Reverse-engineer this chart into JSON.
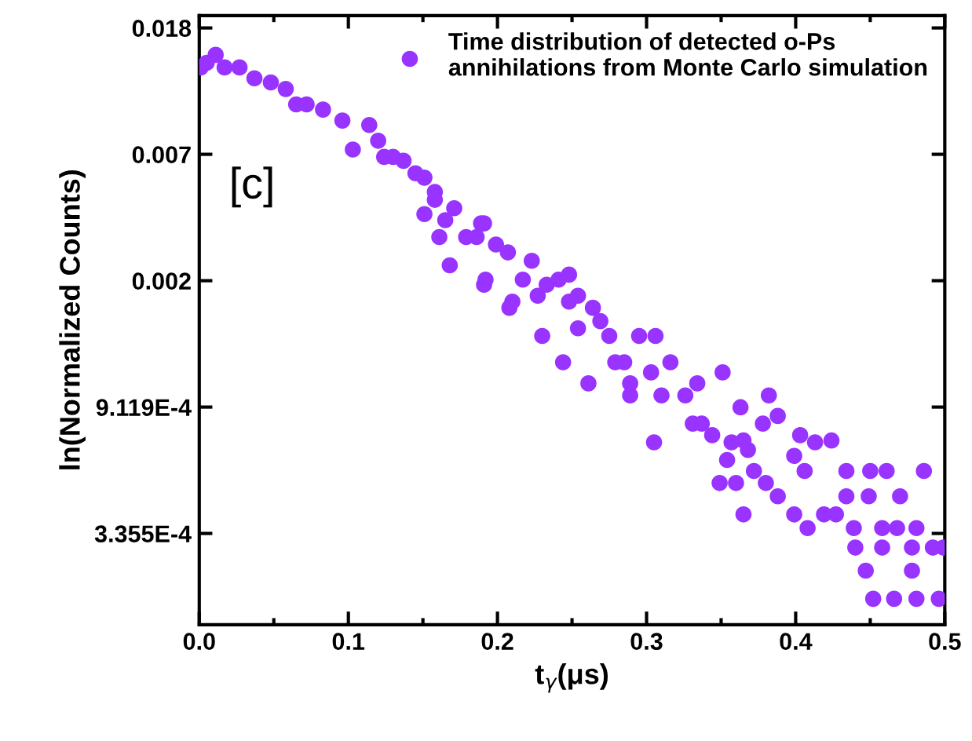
{
  "chart_data": {
    "type": "scatter",
    "xlabel": "t$_{γ}$(μs)",
    "ylabel": "ln(Normalized Counts)",
    "annotations": [
      "[c]"
    ],
    "log": "y",
    "grid": false,
    "legend": "top right",
    "marker": "circle",
    "xlim": [
      0,
      0.5
    ],
    "ylim": [
      0.000163,
      0.0202
    ],
    "xticks": [
      {
        "value": 0,
        "label": "0.0"
      },
      0.1,
      0.2,
      0.3,
      0.4,
      0.5
    ],
    "yticks": [
      {
        "value": 0.0183156,
        "label": "0.018"
      },
      {
        "value": 0.00673795,
        "label": "0.007"
      },
      {
        "value": 0.00247875,
        "label": "0.002"
      },
      {
        "value": 0.000911882,
        "label": "9.119E-4"
      },
      {
        "value": 0.000335463,
        "label": "3.355E-4"
      }
    ],
    "series": [
      {
        "name": "Time distribution of detected o-Ps\nannihilations from Monte Carlo simulation",
        "color": "#9933ff",
        "x": [
          0.001,
          0.005,
          0.011,
          0.017,
          0.027,
          0.037,
          0.048,
          0.058,
          0.065,
          0.072,
          0.083,
          0.096,
          0.103,
          0.114,
          0.12,
          0.124,
          0.13,
          0.137,
          0.145,
          0.151,
          0.158,
          0.151,
          0.165,
          0.158,
          0.161,
          0.171,
          0.179,
          0.189,
          0.192,
          0.199,
          0.207,
          0.21,
          0.217,
          0.223,
          0.227,
          0.241,
          0.248,
          0.186,
          0.191,
          0.168,
          0.191,
          0.208,
          0.233,
          0.248,
          0.23,
          0.254,
          0.244,
          0.264,
          0.254,
          0.275,
          0.261,
          0.285,
          0.295,
          0.289,
          0.306,
          0.303,
          0.316,
          0.305,
          0.31,
          0.326,
          0.351,
          0.337,
          0.344,
          0.357,
          0.363,
          0.368,
          0.269,
          0.279,
          0.289,
          0.334,
          0.331,
          0.365,
          0.378,
          0.382,
          0.388,
          0.354,
          0.349,
          0.36,
          0.372,
          0.38,
          0.365,
          0.403,
          0.399,
          0.413,
          0.424,
          0.406,
          0.388,
          0.399,
          0.408,
          0.419,
          0.434,
          0.427,
          0.434,
          0.449,
          0.439,
          0.44,
          0.45,
          0.461,
          0.47,
          0.486,
          0.458,
          0.468,
          0.481,
          0.447,
          0.458,
          0.478,
          0.478,
          0.492,
          0.499,
          0.452,
          0.466,
          0.481,
          0.496
        ],
        "values": [
          0.0134,
          0.0139,
          0.0148,
          0.0134,
          0.0134,
          0.0123,
          0.0119,
          0.0113,
          0.01,
          0.01,
          0.0096,
          0.0088,
          0.007,
          0.0085,
          0.0075,
          0.0066,
          0.0066,
          0.0064,
          0.0058,
          0.0056,
          0.005,
          0.0042,
          0.004,
          0.0047,
          0.0035,
          0.0044,
          0.0035,
          0.0039,
          0.0025,
          0.0033,
          0.0031,
          0.0021,
          0.0025,
          0.0029,
          0.0022,
          0.0025,
          0.0021,
          0.0035,
          0.0039,
          0.0028,
          0.0024,
          0.002,
          0.0024,
          0.0026,
          0.0016,
          0.0022,
          0.0013,
          0.002,
          0.0017,
          0.0016,
          0.0011,
          0.0013,
          0.0016,
          0.001,
          0.0016,
          0.0012,
          0.0013,
          0.00069,
          0.001,
          0.001,
          0.0012,
          0.0008,
          0.00073,
          0.00069,
          0.00091,
          0.00065,
          0.0018,
          0.0013,
          0.0011,
          0.0011,
          0.0008,
          0.0007,
          0.0008,
          0.001,
          0.00085,
          0.0006,
          0.0005,
          0.0005,
          0.00055,
          0.0005,
          0.00039,
          0.00073,
          0.00062,
          0.00069,
          0.0007,
          0.00055,
          0.00045,
          0.00039,
          0.00035,
          0.00039,
          0.00055,
          0.00039,
          0.00045,
          0.00045,
          0.00035,
          0.0003,
          0.00055,
          0.00055,
          0.00045,
          0.00055,
          0.00035,
          0.00035,
          0.00035,
          0.00025,
          0.0003,
          0.0003,
          0.00025,
          0.0003,
          0.0003,
          0.0002,
          0.0002,
          0.0002,
          0.0002
        ]
      }
    ]
  }
}
